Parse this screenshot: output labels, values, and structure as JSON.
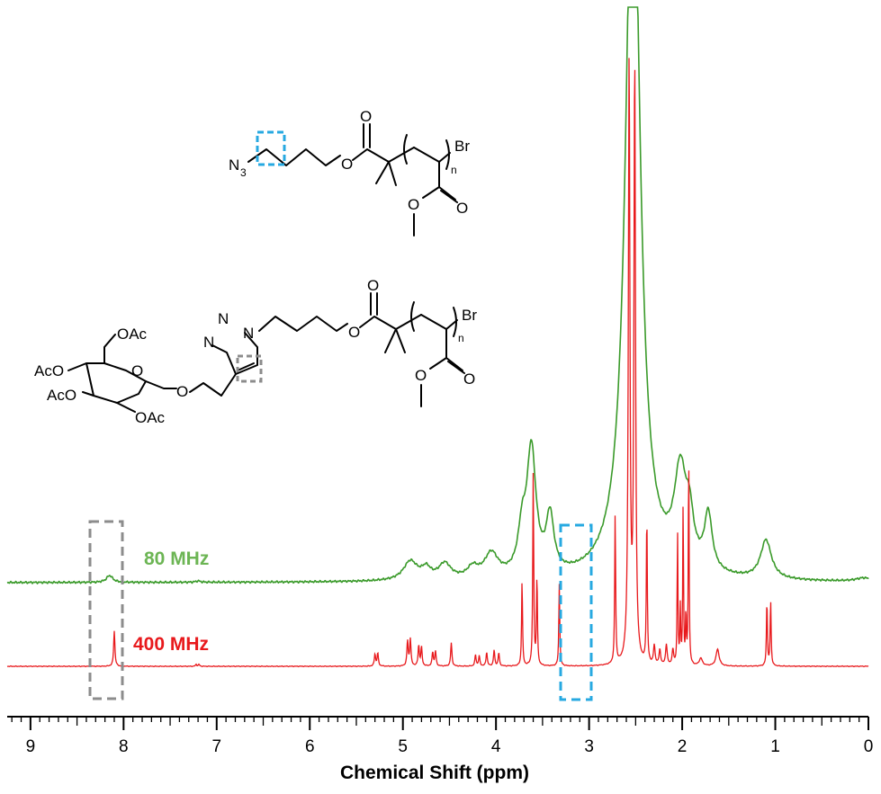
{
  "chart_data": {
    "type": "line",
    "xlabel": "Chemical Shift (ppm)",
    "ylabel": "",
    "xlim": [
      9.25,
      0
    ],
    "x_reversed": true,
    "xticks": [
      9,
      8,
      7,
      6,
      5,
      4,
      3,
      2,
      1,
      0
    ],
    "grid": false,
    "colors": {
      "80mhz": "#3a9a2a",
      "400mhz": "#e8191c",
      "label80": "#6cb554",
      "label400": "#e8191c",
      "box_gray": "#8c8c8c",
      "box_blue": "#27a9e1"
    },
    "series": [
      {
        "name": "80 MHz",
        "baseline": 0.0,
        "peaks": [
          {
            "x": 8.15,
            "h": 0.08,
            "w": 0.04
          },
          {
            "x": 7.2,
            "h": 0.015,
            "w": 0.03
          },
          {
            "x": 4.92,
            "h": 0.22,
            "w": 0.09
          },
          {
            "x": 4.75,
            "h": 0.12,
            "w": 0.06
          },
          {
            "x": 4.55,
            "h": 0.18,
            "w": 0.08
          },
          {
            "x": 4.25,
            "h": 0.12,
            "w": 0.07
          },
          {
            "x": 4.05,
            "h": 0.28,
            "w": 0.09
          },
          {
            "x": 3.72,
            "h": 0.45,
            "w": 0.05
          },
          {
            "x": 3.62,
            "h": 1.45,
            "w": 0.06
          },
          {
            "x": 3.42,
            "h": 0.65,
            "w": 0.05
          },
          {
            "x": 2.53,
            "h": 9.0,
            "w": 0.09
          },
          {
            "x": 2.02,
            "h": 1.1,
            "w": 0.08
          },
          {
            "x": 1.92,
            "h": 0.45,
            "w": 0.05
          },
          {
            "x": 1.72,
            "h": 0.65,
            "w": 0.05
          },
          {
            "x": 1.1,
            "h": 0.45,
            "w": 0.07
          },
          {
            "x": 0.05,
            "h": 0.04,
            "w": 0.1
          }
        ],
        "ymax_visible": 6.3
      },
      {
        "name": "400 MHz",
        "baseline": 0.0,
        "peaks": [
          {
            "x": 8.1,
            "h": 0.38,
            "w": 0.008
          },
          {
            "x": 7.22,
            "h": 0.02,
            "w": 0.008
          },
          {
            "x": 7.19,
            "h": 0.02,
            "w": 0.008
          },
          {
            "x": 5.3,
            "h": 0.13,
            "w": 0.008
          },
          {
            "x": 5.27,
            "h": 0.14,
            "w": 0.008
          },
          {
            "x": 4.95,
            "h": 0.27,
            "w": 0.008
          },
          {
            "x": 4.92,
            "h": 0.29,
            "w": 0.008
          },
          {
            "x": 4.83,
            "h": 0.22,
            "w": 0.008
          },
          {
            "x": 4.8,
            "h": 0.2,
            "w": 0.008
          },
          {
            "x": 4.68,
            "h": 0.15,
            "w": 0.008
          },
          {
            "x": 4.65,
            "h": 0.16,
            "w": 0.008
          },
          {
            "x": 4.48,
            "h": 0.25,
            "w": 0.008
          },
          {
            "x": 4.22,
            "h": 0.12,
            "w": 0.008
          },
          {
            "x": 4.18,
            "h": 0.11,
            "w": 0.008
          },
          {
            "x": 4.1,
            "h": 0.15,
            "w": 0.008
          },
          {
            "x": 4.02,
            "h": 0.17,
            "w": 0.008
          },
          {
            "x": 3.97,
            "h": 0.14,
            "w": 0.008
          },
          {
            "x": 3.72,
            "h": 0.92,
            "w": 0.006
          },
          {
            "x": 3.6,
            "h": 2.05,
            "w": 0.006
          },
          {
            "x": 3.56,
            "h": 0.95,
            "w": 0.006
          },
          {
            "x": 3.32,
            "h": 0.88,
            "w": 0.006
          },
          {
            "x": 2.72,
            "h": 1.6,
            "w": 0.006
          },
          {
            "x": 2.57,
            "h": 6.4,
            "w": 0.01
          },
          {
            "x": 2.51,
            "h": 6.4,
            "w": 0.01
          },
          {
            "x": 2.38,
            "h": 1.6,
            "w": 0.006
          },
          {
            "x": 2.3,
            "h": 0.2,
            "w": 0.01
          },
          {
            "x": 2.24,
            "h": 0.16,
            "w": 0.01
          },
          {
            "x": 2.17,
            "h": 0.22,
            "w": 0.01
          },
          {
            "x": 2.1,
            "h": 0.16,
            "w": 0.01
          },
          {
            "x": 2.05,
            "h": 1.42,
            "w": 0.005
          },
          {
            "x": 2.02,
            "h": 0.6,
            "w": 0.005
          },
          {
            "x": 1.99,
            "h": 1.72,
            "w": 0.005
          },
          {
            "x": 1.96,
            "h": 0.55,
            "w": 0.005
          },
          {
            "x": 1.93,
            "h": 2.3,
            "w": 0.005
          },
          {
            "x": 1.8,
            "h": 0.08,
            "w": 0.02
          },
          {
            "x": 1.62,
            "h": 0.18,
            "w": 0.02
          },
          {
            "x": 1.09,
            "h": 0.7,
            "w": 0.006
          },
          {
            "x": 1.05,
            "h": 0.7,
            "w": 0.006
          }
        ],
        "ymax_visible": 6.3
      }
    ]
  },
  "labels": {
    "series_80": "80 MHz",
    "series_400": "400 MHz"
  },
  "molecule_top": {
    "n3": "N",
    "n3_sub": "3",
    "o_ester": "O",
    "o_carbonyl": "O",
    "br": "Br",
    "n_sub": "n",
    "o_side_carbonyl": "O",
    "o_side_methoxy": "O"
  },
  "molecule_bottom": {
    "oac_top": "OAc",
    "oac_left1": "AcO",
    "oac_left2": "AcO",
    "oac_bottom": "OAc",
    "o_ring": "O",
    "o_glyco": "O",
    "n1": "N",
    "n2": "N",
    "n3": "N",
    "o_ester": "O",
    "o_carbonyl": "O",
    "br": "Br",
    "n_sub": "n",
    "o_side_carbonyl": "O",
    "o_side_methoxy": "O"
  }
}
